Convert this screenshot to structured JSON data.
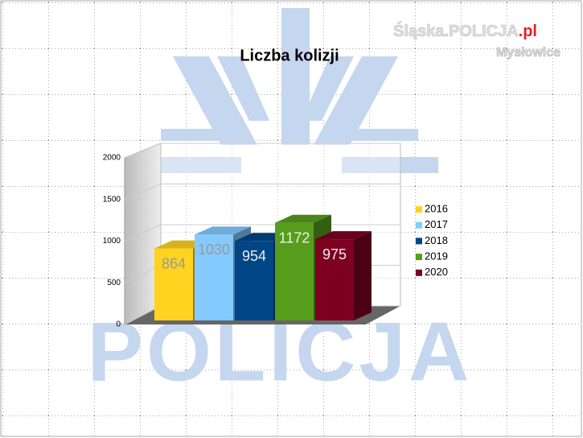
{
  "watermark": {
    "brand": "Śląska.POLICJA",
    "brand_suffix": ".pl",
    "unit": "Mysłowice",
    "big": "POLICJA"
  },
  "chart_data": {
    "type": "bar3d",
    "title": "Liczba kolizji",
    "categories": [
      null
    ],
    "series": [
      {
        "name": "2016",
        "color": "#ffd320",
        "values": [
          864
        ]
      },
      {
        "name": "2017",
        "color": "#83caff",
        "values": [
          1030
        ]
      },
      {
        "name": "2018",
        "color": "#004586",
        "values": [
          954
        ]
      },
      {
        "name": "2019",
        "color": "#579d1c",
        "values": [
          1172
        ]
      },
      {
        "name": "2020",
        "color": "#7e0021",
        "values": [
          975
        ]
      }
    ],
    "ylim": [
      0,
      2000
    ],
    "yticks": [
      0,
      500,
      1000,
      1500,
      2000
    ],
    "grid": true,
    "legend": "right"
  }
}
